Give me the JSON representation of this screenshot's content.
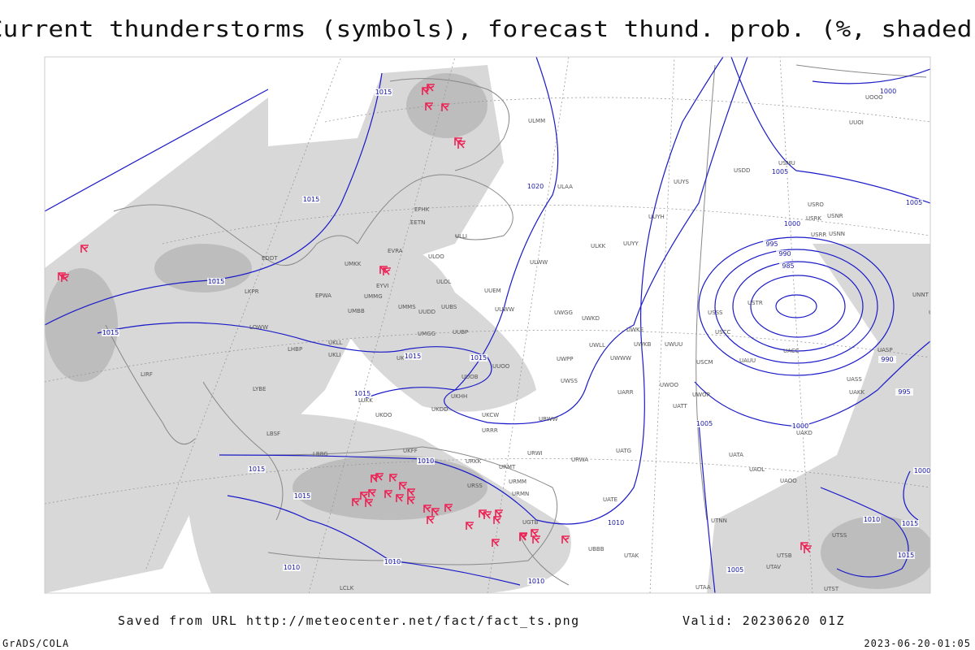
{
  "title": "Current thunderstorms (symbols), forecast thund. prob. (%, shaded)",
  "footer": {
    "source": "Saved from URL http://meteocenter.net/fact/fact_ts.png",
    "valid": "Valid: 20230620 01Z",
    "software": "GrADS/COLA",
    "timestamp": "2023-06-20-01:05"
  },
  "isobar_labels": [
    1015,
    1015,
    1020,
    1015,
    1015,
    1015,
    1015,
    1015,
    1010,
    1015,
    1015,
    1010,
    1010,
    1010,
    1010,
    1005,
    1005,
    1005,
    1000,
    1005,
    1000,
    995,
    990,
    985,
    990,
    995,
    1000,
    1000,
    1010,
    1015,
    1015
  ],
  "station_labels": [
    "ULMM",
    "ULAA",
    "ULLI",
    "EFHK",
    "EETN",
    "EVRA",
    "ULOO",
    "ULOL",
    "UMKK",
    "EYVI",
    "UMMG",
    "UMMS",
    "EPWA",
    "UMBB",
    "UUEM",
    "UUWW",
    "UUDD",
    "UUBS",
    "UKLL",
    "UKLI",
    "UMGG",
    "UUBP",
    "UKKK",
    "UUOO",
    "UUOB",
    "LHBP",
    "LOWW",
    "LKPR",
    "EDDT",
    "LIRF",
    "LYBE",
    "LUKK",
    "UKHH",
    "UKDD",
    "UKOO",
    "UKCW",
    "LBSF",
    "URRR",
    "UKFF",
    "URKK",
    "URMT",
    "URMM",
    "URSS",
    "URMN",
    "UGTB",
    "UBBB",
    "UUYY",
    "ULWW",
    "UUYH",
    "ULKK",
    "UUYS",
    "USDD",
    "USMU",
    "USRR",
    "USNN",
    "USRO",
    "USNR",
    "USRK",
    "USTR",
    "USSS",
    "USCC",
    "USCM",
    "UAUU",
    "UACC",
    "UAKK",
    "UATT",
    "UWOO",
    "UWOR",
    "UATG",
    "URWA",
    "URWI",
    "UATE",
    "UATA",
    "UAOL",
    "UAOO",
    "UTAK",
    "UTAA",
    "UTNN",
    "UTSS",
    "UTSB",
    "UTAV",
    "UTST",
    "UAKD",
    "UWKD",
    "UWKE",
    "UWKB",
    "UWUU",
    "UWPP",
    "UWWW",
    "UWLL",
    "UWSS",
    "UARR",
    "URWW",
    "UWGG",
    "UUOI",
    "UOOO",
    "UNNT",
    "UNBB",
    "UASP",
    "UASS",
    "LCLK",
    "LBBG"
  ]
}
